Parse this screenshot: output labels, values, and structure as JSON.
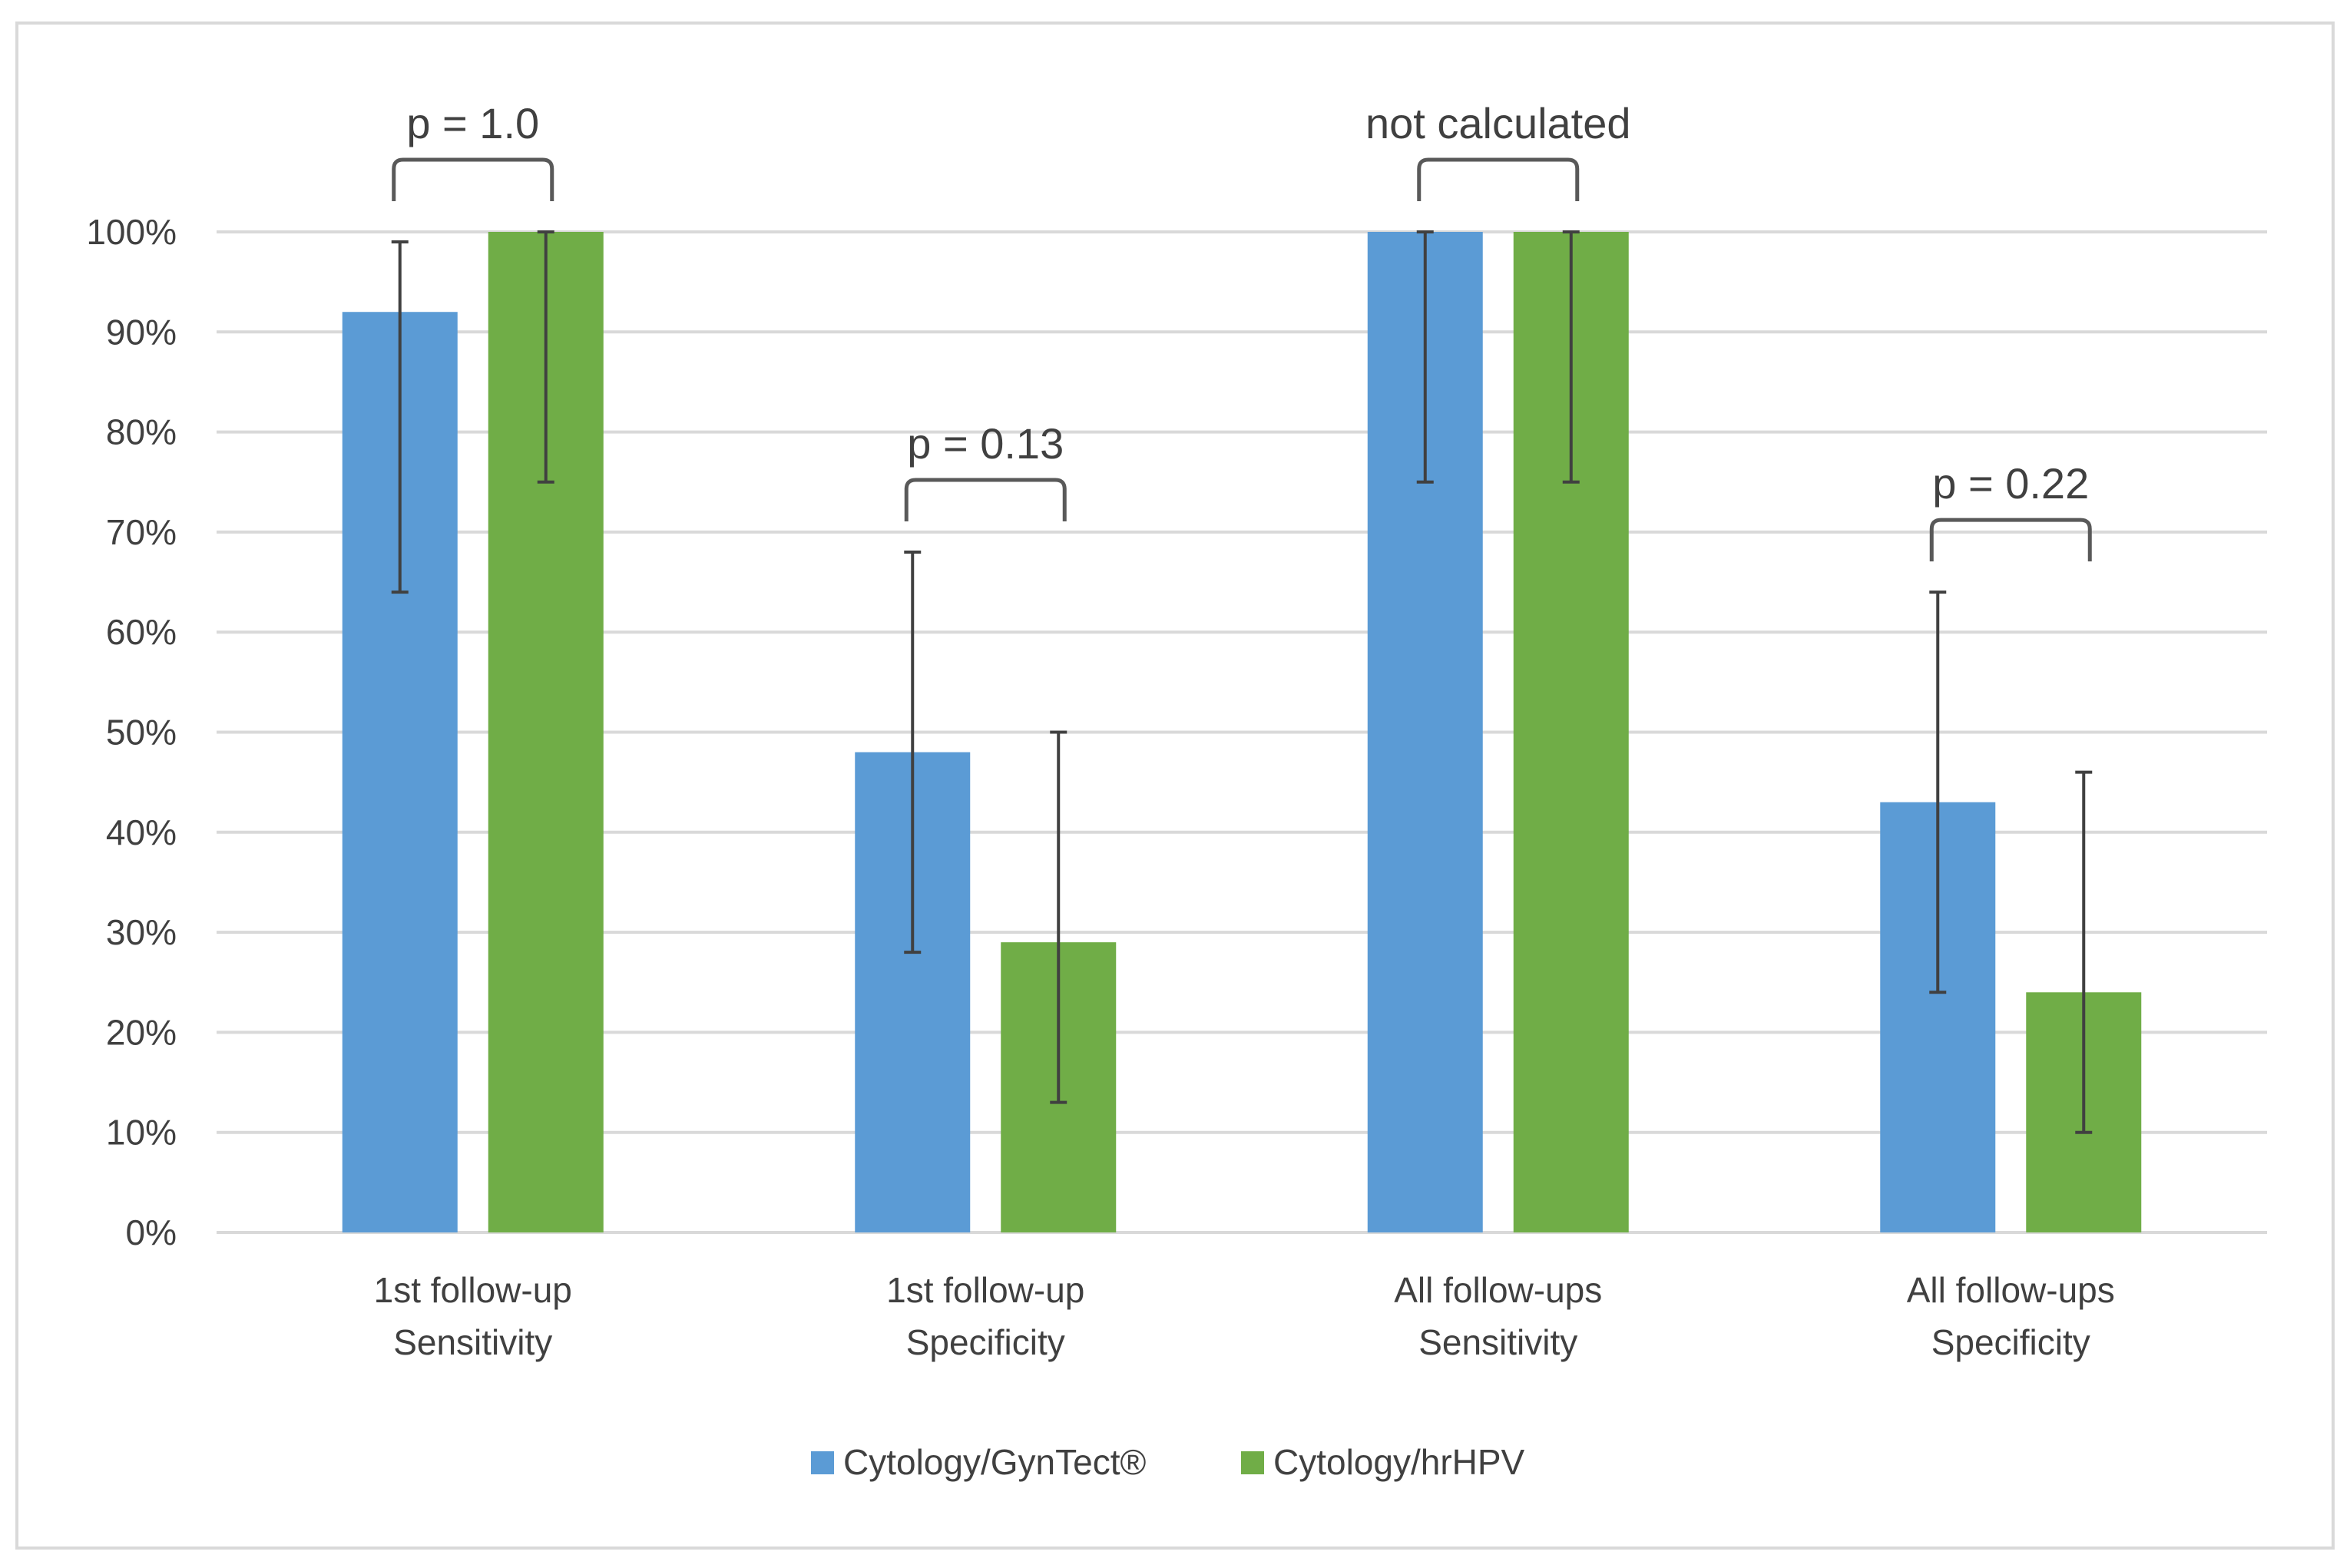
{
  "chart_data": {
    "type": "bar",
    "title": "",
    "xlabel": "",
    "ylabel": "",
    "ylim": [
      0,
      100
    ],
    "yticks": [
      0,
      10,
      20,
      30,
      40,
      50,
      60,
      70,
      80,
      90,
      100
    ],
    "ytick_suffix": "%",
    "grid": true,
    "legend_position": "bottom-center",
    "categories": [
      [
        "1st follow-up",
        "Sensitivity"
      ],
      [
        "1st follow-up",
        "Specificity"
      ],
      [
        "All follow-ups",
        "Sensitivity"
      ],
      [
        "All follow-ups",
        "Specificity"
      ]
    ],
    "series": [
      {
        "name": "Cytology/GynTect®",
        "color": "#5b9bd5",
        "values": [
          92,
          48,
          100,
          43
        ],
        "error_low": [
          64,
          28,
          75,
          24
        ],
        "error_high": [
          99,
          68,
          100,
          64
        ]
      },
      {
        "name": "Cytology/hrHPV",
        "color": "#70ad47",
        "values": [
          100,
          29,
          100,
          24
        ],
        "error_low": [
          75,
          13,
          75,
          10
        ],
        "error_high": [
          100,
          50,
          100,
          46
        ]
      }
    ],
    "annotations": [
      {
        "category": 0,
        "text": "p = 1.0"
      },
      {
        "category": 1,
        "text": "p = 0.13"
      },
      {
        "category": 2,
        "text": "not calculated"
      },
      {
        "category": 3,
        "text": "p = 0.22"
      }
    ]
  }
}
